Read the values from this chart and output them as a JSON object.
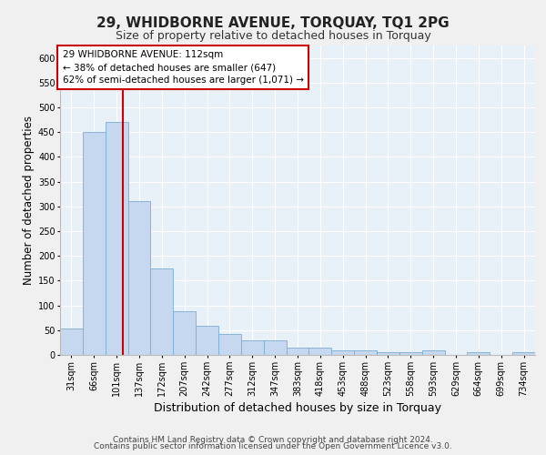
{
  "title": "29, WHIDBORNE AVENUE, TORQUAY, TQ1 2PG",
  "subtitle": "Size of property relative to detached houses in Torquay",
  "xlabel": "Distribution of detached houses by size in Torquay",
  "ylabel": "Number of detached properties",
  "categories": [
    "31sqm",
    "66sqm",
    "101sqm",
    "137sqm",
    "172sqm",
    "207sqm",
    "242sqm",
    "277sqm",
    "312sqm",
    "347sqm",
    "383sqm",
    "418sqm",
    "453sqm",
    "488sqm",
    "523sqm",
    "558sqm",
    "593sqm",
    "629sqm",
    "664sqm",
    "699sqm",
    "734sqm"
  ],
  "values": [
    53,
    450,
    470,
    310,
    175,
    88,
    58,
    42,
    30,
    30,
    14,
    14,
    10,
    10,
    6,
    6,
    9,
    0,
    5,
    0,
    5
  ],
  "bar_color": "#c5d8ef",
  "bar_edge_color": "#7aadd4",
  "vline_color": "#cc0000",
  "vline_x_index": 2.28,
  "annotation_text": "29 WHIDBORNE AVENUE: 112sqm\n← 38% of detached houses are smaller (647)\n62% of semi-detached houses are larger (1,071) →",
  "annotation_box_facecolor": "#ffffff",
  "annotation_box_edgecolor": "#cc0000",
  "ylim": [
    0,
    625
  ],
  "yticks": [
    0,
    50,
    100,
    150,
    200,
    250,
    300,
    350,
    400,
    450,
    500,
    550,
    600
  ],
  "fig_facecolor": "#f0f0f0",
  "plot_facecolor": "#e8f0f8",
  "title_fontsize": 11,
  "subtitle_fontsize": 9,
  "xlabel_fontsize": 9,
  "ylabel_fontsize": 8.5,
  "tick_fontsize": 7,
  "annotation_fontsize": 7.5,
  "footer1": "Contains HM Land Registry data © Crown copyright and database right 2024.",
  "footer2": "Contains public sector information licensed under the Open Government Licence v3.0.",
  "footer_fontsize": 6.5
}
